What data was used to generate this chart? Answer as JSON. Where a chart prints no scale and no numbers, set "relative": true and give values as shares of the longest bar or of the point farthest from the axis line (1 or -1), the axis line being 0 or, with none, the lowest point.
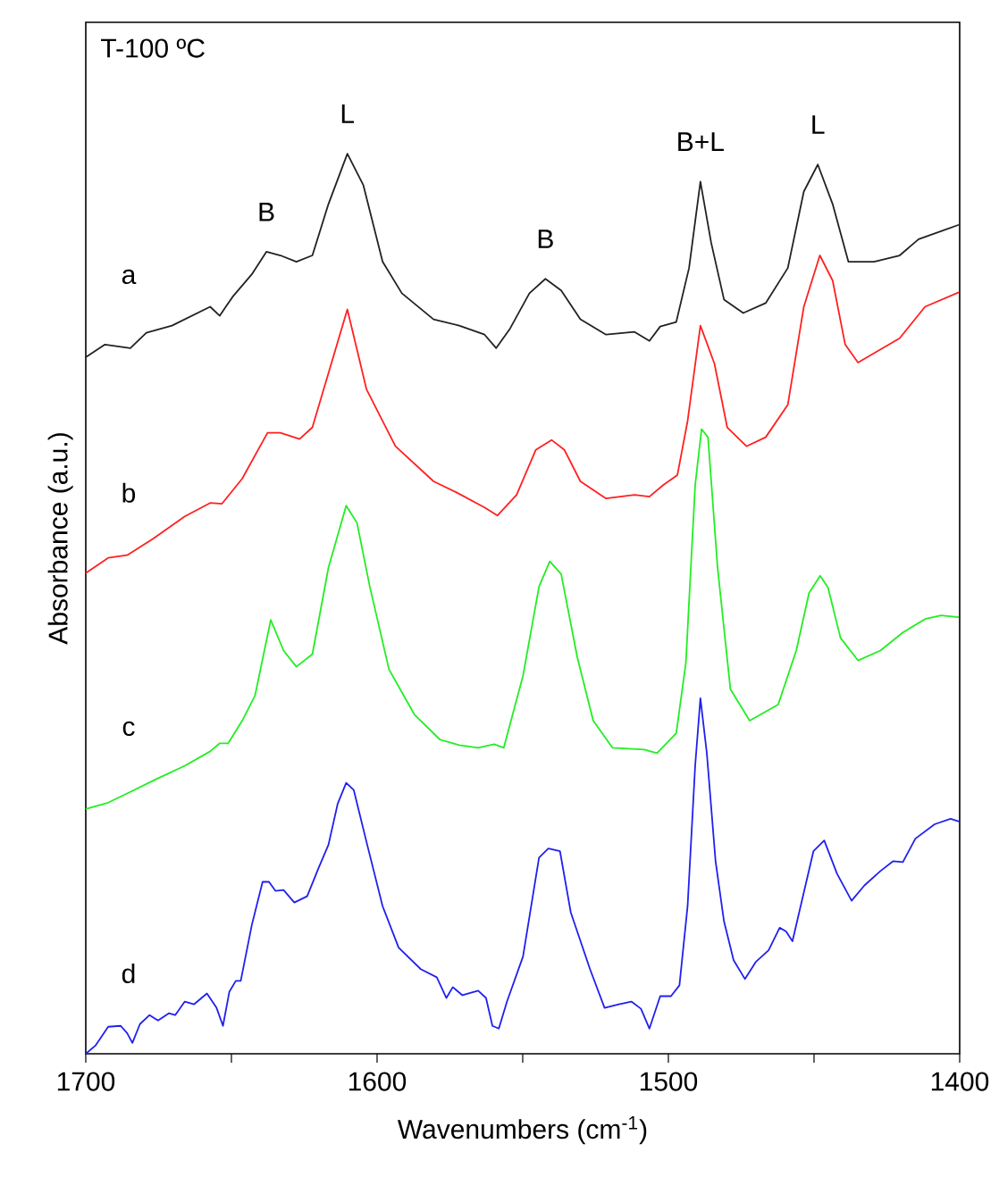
{
  "chart_data": {
    "type": "line",
    "relative": true,
    "xlabel": "Wavenumbers (cm$^{-1}$)",
    "ylabel": "Absorbance (a.u.)",
    "xlim": [
      1700,
      1400
    ],
    "xticks": [
      1700,
      {
        "value": 1650,
        "label": null
      },
      1600,
      {
        "value": 1550,
        "label": null
      },
      1500,
      {
        "value": 1450,
        "label": null
      },
      1400
    ],
    "legend": false,
    "grid": false,
    "marker": "none",
    "line_style": "solid",
    "annotations": [
      "T-100 ºC",
      {
        "text": "B",
        "x": 1638,
        "y": 0.891
      },
      {
        "text": "L",
        "x": 1610.2,
        "y": 1.0
      },
      {
        "text": "B",
        "x": 1542.2,
        "y": 0.861
      },
      {
        "text": "B+L",
        "x": 1489,
        "y": 0.969
      },
      {
        "text": "L",
        "x": 1448.7,
        "y": 0.988
      }
    ],
    "series": [
      {
        "name": "a",
        "color": "#222222",
        "x": [
          1700,
          1693.4,
          1684.7,
          1679.2,
          1670.4,
          1657.3,
          1654.0,
          1649.6,
          1643.0,
          1638.0,
          1633.2,
          1627.7,
          1622.2,
          1616.7,
          1610.2,
          1604.7,
          1598.1,
          1591.5,
          1580.6,
          1571.8,
          1563.1,
          1559.1,
          1554.3,
          1547.7,
          1542.2,
          1536.8,
          1530.2,
          1521.4,
          1511.6,
          1506.5,
          1502.8,
          1497.3,
          1492.9,
          1489.0,
          1485.3,
          1480.9,
          1474.3,
          1466.6,
          1459.0,
          1453.5,
          1448.7,
          1443.6,
          1438.2,
          1429.4,
          1420.6,
          1414.1,
          1400.3
        ],
        "values": [
          0.774,
          0.788,
          0.784,
          0.801,
          0.809,
          0.83,
          0.82,
          0.841,
          0.866,
          0.891,
          0.887,
          0.88,
          0.887,
          0.944,
          1.0,
          0.965,
          0.88,
          0.845,
          0.816,
          0.809,
          0.799,
          0.784,
          0.806,
          0.845,
          0.861,
          0.848,
          0.816,
          0.799,
          0.802,
          0.792,
          0.808,
          0.813,
          0.873,
          0.969,
          0.901,
          0.838,
          0.823,
          0.834,
          0.873,
          0.958,
          0.988,
          0.944,
          0.88,
          0.88,
          0.887,
          0.905,
          0.921
        ]
      },
      {
        "name": "b",
        "color": "#ff2020",
        "x": [
          1700,
          1692.3,
          1685.8,
          1677.0,
          1666.0,
          1657.3,
          1653.3,
          1646.3,
          1637.6,
          1633.2,
          1626.6,
          1622.2,
          1610.2,
          1603.6,
          1593.7,
          1580.6,
          1572.9,
          1563.1,
          1558.7,
          1552.1,
          1545.5,
          1540.1,
          1535.7,
          1530.2,
          1521.4,
          1511.6,
          1506.5,
          1501.7,
          1496.9,
          1493.4,
          1489.0,
          1484.2,
          1479.8,
          1473.2,
          1466.6,
          1459.0,
          1453.5,
          1448.0,
          1443.6,
          1439.3,
          1434.9,
          1420.6,
          1411.9,
          1400.3
        ],
        "values": [
          0.534,
          0.551,
          0.554,
          0.572,
          0.597,
          0.612,
          0.611,
          0.639,
          0.69,
          0.69,
          0.683,
          0.696,
          0.827,
          0.738,
          0.675,
          0.636,
          0.624,
          0.607,
          0.598,
          0.621,
          0.671,
          0.682,
          0.671,
          0.636,
          0.617,
          0.621,
          0.619,
          0.632,
          0.643,
          0.703,
          0.809,
          0.767,
          0.696,
          0.675,
          0.685,
          0.721,
          0.83,
          0.887,
          0.859,
          0.788,
          0.768,
          0.795,
          0.83,
          0.846
        ]
      },
      {
        "name": "c",
        "color": "#22ee22",
        "x": [
          1700,
          1692.3,
          1684.7,
          1675.9,
          1666.0,
          1657.3,
          1654.0,
          1651.1,
          1646.3,
          1641.9,
          1636.5,
          1632.1,
          1627.7,
          1622.2,
          1616.7,
          1610.6,
          1606.9,
          1602.5,
          1595.9,
          1587.2,
          1578.4,
          1571.8,
          1565.3,
          1559.8,
          1556.5,
          1549.9,
          1544.4,
          1540.7,
          1536.8,
          1531.3,
          1525.8,
          1519.2,
          1508.3,
          1503.9,
          1497.3,
          1494.0,
          1490.8,
          1488.6,
          1486.4,
          1483.1,
          1478.7,
          1472.1,
          1462.3,
          1456.1,
          1451.7,
          1447.9,
          1445.2,
          1440.9,
          1434.9,
          1427.2,
          1419.5,
          1411.9,
          1406.4,
          1400.3
        ],
        "values": [
          0.272,
          0.279,
          0.291,
          0.305,
          0.32,
          0.336,
          0.345,
          0.345,
          0.37,
          0.398,
          0.482,
          0.448,
          0.43,
          0.444,
          0.54,
          0.609,
          0.59,
          0.519,
          0.427,
          0.377,
          0.349,
          0.343,
          0.34,
          0.344,
          0.34,
          0.42,
          0.519,
          0.547,
          0.533,
          0.441,
          0.37,
          0.34,
          0.338,
          0.334,
          0.356,
          0.434,
          0.632,
          0.694,
          0.685,
          0.54,
          0.405,
          0.37,
          0.388,
          0.448,
          0.512,
          0.531,
          0.518,
          0.462,
          0.437,
          0.448,
          0.468,
          0.483,
          0.487,
          0.485
        ]
      },
      {
        "name": "d",
        "color": "#2020ee",
        "x": [
          1700,
          1696.7,
          1692.3,
          1688.0,
          1685.8,
          1684.0,
          1681.4,
          1678.1,
          1675.2,
          1671.5,
          1669.3,
          1666.0,
          1662.8,
          1658.4,
          1655.1,
          1652.9,
          1650.7,
          1648.5,
          1646.8,
          1643.0,
          1639.3,
          1637.1,
          1634.9,
          1632.1,
          1628.4,
          1624.0,
          1620.0,
          1616.7,
          1613.5,
          1610.6,
          1608.0,
          1603.6,
          1598.1,
          1592.6,
          1585.0,
          1579.5,
          1576.2,
          1574.0,
          1570.7,
          1565.3,
          1562.6,
          1560.4,
          1558.2,
          1555.4,
          1549.9,
          1544.4,
          1541.2,
          1537.2,
          1533.5,
          1526.9,
          1521.9,
          1517.0,
          1512.7,
          1509.4,
          1506.5,
          1502.8,
          1499.1,
          1496.2,
          1493.4,
          1490.8,
          1489.0,
          1486.8,
          1483.8,
          1480.9,
          1477.6,
          1473.7,
          1470.0,
          1465.6,
          1461.8,
          1459.6,
          1457.4,
          1454.6,
          1450.2,
          1446.5,
          1442.1,
          1437.1,
          1432.7,
          1427.2,
          1422.8,
          1419.5,
          1415.2,
          1408.6,
          1403.1,
          1400.3
        ],
        "values": [
          0.0,
          0.009,
          0.03,
          0.031,
          0.023,
          0.012,
          0.033,
          0.043,
          0.037,
          0.045,
          0.043,
          0.058,
          0.055,
          0.067,
          0.051,
          0.031,
          0.069,
          0.081,
          0.081,
          0.143,
          0.191,
          0.191,
          0.181,
          0.182,
          0.168,
          0.175,
          0.207,
          0.232,
          0.278,
          0.301,
          0.293,
          0.235,
          0.164,
          0.118,
          0.094,
          0.085,
          0.062,
          0.074,
          0.065,
          0.07,
          0.062,
          0.031,
          0.028,
          0.058,
          0.108,
          0.218,
          0.228,
          0.225,
          0.157,
          0.094,
          0.051,
          0.055,
          0.058,
          0.05,
          0.028,
          0.064,
          0.064,
          0.076,
          0.164,
          0.32,
          0.395,
          0.334,
          0.214,
          0.147,
          0.104,
          0.083,
          0.102,
          0.115,
          0.14,
          0.136,
          0.125,
          0.164,
          0.225,
          0.237,
          0.2,
          0.17,
          0.187,
          0.203,
          0.214,
          0.213,
          0.239,
          0.255,
          0.261,
          0.258
        ]
      }
    ]
  }
}
